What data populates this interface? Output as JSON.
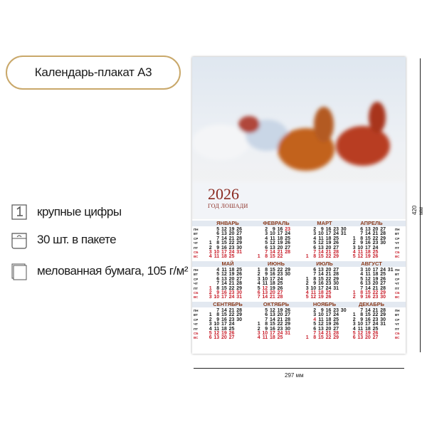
{
  "title": "Календарь-плакат А3",
  "features": [
    {
      "icon": "large-digit-icon",
      "label": "крупные цифры"
    },
    {
      "icon": "package-icon",
      "label": "30 шт. в пакете"
    },
    {
      "icon": "paper-sheets-icon",
      "label": "мелованная бумага, 105 г/м²"
    }
  ],
  "poster": {
    "year": "2026",
    "subtitle": "ГОД ЛОШАДИ",
    "weekdays": [
      "ПН",
      "ВТ",
      "СР",
      "ЧТ",
      "ПТ",
      "СБ",
      "ВС"
    ],
    "holidays": {
      "ФЕВРАЛЬ": [
        "23"
      ],
      "МАЙ": [
        "1"
      ],
      "ИЮНЬ": [
        "12"
      ],
      "НОЯБРЬ": [
        "4"
      ]
    },
    "months": [
      {
        "name": "ЯНВАРЬ",
        "rows": [
          [
            "",
            "5",
            "12",
            "19",
            "26"
          ],
          [
            "",
            "6",
            "13",
            "20",
            "27"
          ],
          [
            "",
            "7",
            "14",
            "21",
            "28"
          ],
          [
            "1",
            "8",
            "15",
            "22",
            "29"
          ],
          [
            "2",
            "9",
            "16",
            "23",
            "30"
          ],
          [
            "3",
            "10",
            "17",
            "24",
            "31"
          ],
          [
            "4",
            "11",
            "18",
            "25"
          ]
        ]
      },
      {
        "name": "ФЕВРАЛЬ",
        "rows": [
          [
            "",
            "2",
            "9",
            "16",
            "23"
          ],
          [
            "",
            "3",
            "10",
            "17",
            "24"
          ],
          [
            "",
            "4",
            "11",
            "18",
            "25"
          ],
          [
            "",
            "5",
            "12",
            "19",
            "26"
          ],
          [
            "",
            "6",
            "13",
            "20",
            "27"
          ],
          [
            "",
            "7",
            "14",
            "21",
            "28"
          ],
          [
            "1",
            "8",
            "15",
            "22"
          ]
        ]
      },
      {
        "name": "МАРТ",
        "rows": [
          [
            "",
            "2",
            "9",
            "16",
            "23",
            "30"
          ],
          [
            "",
            "3",
            "10",
            "17",
            "24",
            "31"
          ],
          [
            "",
            "4",
            "11",
            "18",
            "25"
          ],
          [
            "",
            "5",
            "12",
            "19",
            "26"
          ],
          [
            "",
            "6",
            "13",
            "20",
            "27"
          ],
          [
            "",
            "7",
            "14",
            "21",
            "28"
          ],
          [
            "1",
            "8",
            "15",
            "22",
            "29"
          ]
        ]
      },
      {
        "name": "АПРЕЛЬ",
        "rows": [
          [
            "",
            "6",
            "13",
            "20",
            "27"
          ],
          [
            "",
            "7",
            "14",
            "21",
            "28"
          ],
          [
            "1",
            "8",
            "15",
            "22",
            "29"
          ],
          [
            "2",
            "9",
            "16",
            "23",
            "30"
          ],
          [
            "3",
            "10",
            "17",
            "24"
          ],
          [
            "4",
            "11",
            "18",
            "25"
          ],
          [
            "5",
            "12",
            "19",
            "26"
          ]
        ]
      },
      {
        "name": "МАЙ",
        "rows": [
          [
            "",
            "4",
            "11",
            "18",
            "25"
          ],
          [
            "",
            "5",
            "12",
            "19",
            "26"
          ],
          [
            "",
            "6",
            "13",
            "20",
            "27"
          ],
          [
            "",
            "7",
            "14",
            "21",
            "28"
          ],
          [
            "1",
            "8",
            "15",
            "22",
            "29"
          ],
          [
            "2",
            "9",
            "16",
            "23",
            "30"
          ],
          [
            "3",
            "10",
            "17",
            "24",
            "31"
          ]
        ]
      },
      {
        "name": "ИЮНЬ",
        "rows": [
          [
            "1",
            "8",
            "15",
            "22",
            "29"
          ],
          [
            "2",
            "9",
            "16",
            "23",
            "30"
          ],
          [
            "3",
            "10",
            "17",
            "24"
          ],
          [
            "4",
            "11",
            "18",
            "25"
          ],
          [
            "5",
            "12",
            "19",
            "26"
          ],
          [
            "6",
            "13",
            "20",
            "27"
          ],
          [
            "7",
            "14",
            "21",
            "28"
          ]
        ]
      },
      {
        "name": "ИЮЛЬ",
        "rows": [
          [
            "",
            "6",
            "13",
            "20",
            "27"
          ],
          [
            "",
            "7",
            "14",
            "21",
            "28"
          ],
          [
            "1",
            "8",
            "15",
            "22",
            "29"
          ],
          [
            "2",
            "9",
            "16",
            "23",
            "30"
          ],
          [
            "3",
            "10",
            "17",
            "24",
            "31"
          ],
          [
            "4",
            "11",
            "18",
            "25"
          ],
          [
            "5",
            "12",
            "19",
            "26"
          ]
        ]
      },
      {
        "name": "АВГУСТ",
        "rows": [
          [
            "",
            "3",
            "10",
            "17",
            "24",
            "31"
          ],
          [
            "",
            "4",
            "11",
            "18",
            "25"
          ],
          [
            "",
            "5",
            "12",
            "19",
            "26"
          ],
          [
            "",
            "6",
            "13",
            "20",
            "27"
          ],
          [
            "",
            "7",
            "14",
            "21",
            "28"
          ],
          [
            "1",
            "8",
            "15",
            "22",
            "29"
          ],
          [
            "2",
            "9",
            "16",
            "23",
            "30"
          ]
        ]
      },
      {
        "name": "СЕНТЯБРЬ",
        "rows": [
          [
            "",
            "7",
            "14",
            "21",
            "28"
          ],
          [
            "1",
            "8",
            "15",
            "22",
            "29"
          ],
          [
            "2",
            "9",
            "16",
            "23",
            "30"
          ],
          [
            "3",
            "10",
            "17",
            "24"
          ],
          [
            "4",
            "11",
            "18",
            "25"
          ],
          [
            "5",
            "12",
            "19",
            "26"
          ],
          [
            "6",
            "13",
            "20",
            "27"
          ]
        ]
      },
      {
        "name": "ОКТЯБРЬ",
        "rows": [
          [
            "",
            "5",
            "12",
            "19",
            "26"
          ],
          [
            "",
            "6",
            "13",
            "20",
            "27"
          ],
          [
            "",
            "7",
            "14",
            "21",
            "28"
          ],
          [
            "1",
            "8",
            "15",
            "22",
            "29"
          ],
          [
            "2",
            "9",
            "16",
            "23",
            "30"
          ],
          [
            "3",
            "10",
            "17",
            "24",
            "31"
          ],
          [
            "4",
            "11",
            "18",
            "25"
          ]
        ]
      },
      {
        "name": "НОЯБРЬ",
        "rows": [
          [
            "",
            "2",
            "9",
            "16",
            "23",
            "30"
          ],
          [
            "",
            "3",
            "10",
            "17",
            "24"
          ],
          [
            "",
            "4",
            "11",
            "18",
            "25"
          ],
          [
            "",
            "5",
            "12",
            "19",
            "26"
          ],
          [
            "",
            "6",
            "13",
            "20",
            "27"
          ],
          [
            "",
            "7",
            "14",
            "21",
            "28"
          ],
          [
            "1",
            "8",
            "15",
            "22",
            "29"
          ]
        ]
      },
      {
        "name": "ДЕКАБРЬ",
        "rows": [
          [
            "",
            "7",
            "14",
            "21",
            "28"
          ],
          [
            "1",
            "8",
            "15",
            "22",
            "29"
          ],
          [
            "2",
            "9",
            "16",
            "23",
            "30"
          ],
          [
            "3",
            "10",
            "17",
            "24",
            "31"
          ],
          [
            "4",
            "11",
            "18",
            "25"
          ],
          [
            "5",
            "12",
            "19",
            "26"
          ],
          [
            "6",
            "13",
            "20",
            "27"
          ]
        ]
      }
    ]
  },
  "dimensions": {
    "width": "297 мм",
    "height": "420 мм"
  },
  "colors": {
    "accent": "#c9a86a",
    "month": "#8b3b1c",
    "weekend": "#c8202c"
  }
}
